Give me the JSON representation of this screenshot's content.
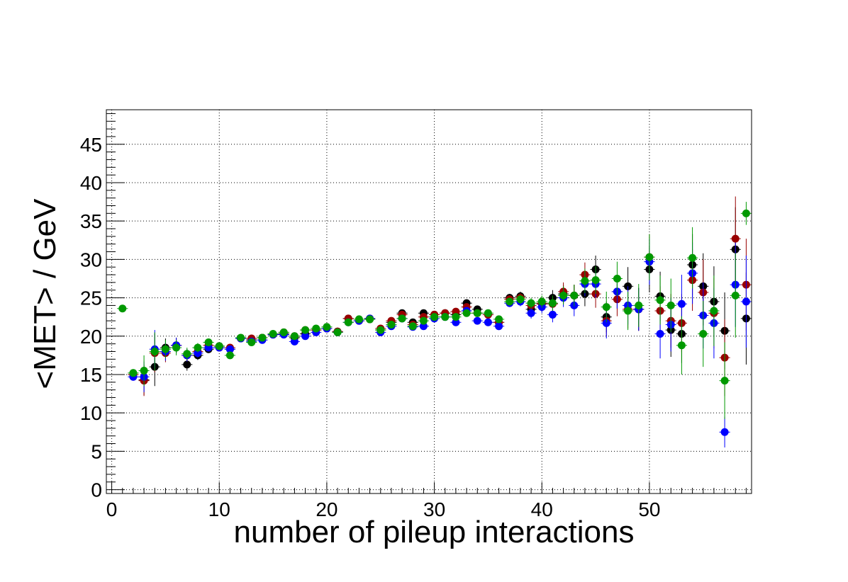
{
  "chart_data": {
    "type": "scatter",
    "title": "",
    "xlabel": "number of pileup interactions",
    "ylabel": "<MET> / GeV",
    "xlim": [
      -0.5,
      59.5
    ],
    "ylim": [
      -0.5,
      49.5
    ],
    "x_ticks": [
      0,
      10,
      20,
      30,
      40,
      50
    ],
    "y_ticks": [
      0,
      5,
      10,
      15,
      20,
      25,
      30,
      35,
      40,
      45
    ],
    "x_tick_labels": [
      "0",
      "10",
      "20",
      "30",
      "40",
      "50"
    ],
    "y_tick_labels": [
      "0",
      "5",
      "10",
      "15",
      "20",
      "25",
      "30",
      "35",
      "40",
      "45"
    ],
    "grid": true,
    "legend": "none",
    "x": [
      1,
      2,
      3,
      4,
      5,
      6,
      7,
      8,
      9,
      10,
      11,
      12,
      13,
      14,
      15,
      16,
      17,
      18,
      19,
      20,
      21,
      22,
      23,
      24,
      25,
      26,
      27,
      28,
      29,
      30,
      31,
      32,
      33,
      34,
      35,
      36,
      37,
      38,
      39,
      40,
      41,
      42,
      43,
      44,
      45,
      46,
      47,
      48,
      49,
      50,
      51,
      52,
      53,
      54,
      55,
      56,
      57,
      58,
      59
    ],
    "series": [
      {
        "color": "#000000",
        "values": [
          null,
          15.0,
          14.3,
          16.0,
          18.5,
          18.8,
          16.3,
          17.5,
          18.3,
          18.7,
          18.3,
          19.7,
          19.5,
          19.8,
          20.2,
          20.3,
          19.8,
          20.3,
          20.8,
          21.0,
          20.6,
          22.3,
          22.0,
          22.2,
          20.8,
          21.8,
          23.0,
          21.8,
          23.0,
          22.8,
          23.0,
          22.8,
          24.3,
          23.5,
          22.8,
          21.8,
          25.0,
          25.2,
          23.5,
          24.2,
          25.0,
          25.5,
          25.3,
          25.5,
          28.7,
          22.5,
          25.8,
          26.5,
          23.5,
          28.7,
          25.2,
          20.8,
          20.3,
          29.3,
          26.5,
          24.5,
          20.7,
          31.3,
          22.3
        ],
        "errors": [
          null,
          0.5,
          2.0,
          2.5,
          1.2,
          1.0,
          0.8,
          0.6,
          0.5,
          0.5,
          0.4,
          0.4,
          0.4,
          0.3,
          0.3,
          0.3,
          0.3,
          0.3,
          0.3,
          0.3,
          0.3,
          0.3,
          0.3,
          0.3,
          0.3,
          0.3,
          0.3,
          0.3,
          0.3,
          0.3,
          0.3,
          0.3,
          0.4,
          0.4,
          0.4,
          0.5,
          0.5,
          0.6,
          0.7,
          0.8,
          1.0,
          1.2,
          1.4,
          1.6,
          1.8,
          2.0,
          2.2,
          2.5,
          2.8,
          3.0,
          3.2,
          3.5,
          3.8,
          4.0,
          4.3,
          4.6,
          5.0,
          5.5,
          6.0
        ]
      },
      {
        "color": "#990000",
        "values": [
          null,
          15.0,
          14.2,
          17.8,
          17.8,
          18.8,
          17.5,
          18.0,
          18.8,
          18.5,
          18.5,
          19.7,
          19.7,
          19.8,
          20.2,
          20.5,
          20.0,
          20.8,
          20.8,
          21.0,
          20.6,
          22.3,
          22.0,
          22.3,
          21.0,
          22.0,
          22.8,
          21.5,
          22.5,
          22.8,
          23.0,
          23.2,
          23.8,
          23.0,
          22.8,
          21.8,
          24.8,
          25.0,
          24.0,
          24.3,
          24.2,
          25.8,
          25.3,
          28.0,
          25.5,
          22.0,
          24.8,
          23.5,
          23.5,
          30.3,
          23.3,
          22.0,
          21.7,
          27.3,
          25.7,
          23.0,
          17.2,
          32.7,
          26.7
        ],
        "errors": [
          null,
          0.5,
          2.0,
          2.5,
          1.2,
          1.0,
          0.8,
          0.6,
          0.5,
          0.5,
          0.4,
          0.4,
          0.4,
          0.3,
          0.3,
          0.3,
          0.3,
          0.3,
          0.3,
          0.3,
          0.3,
          0.3,
          0.3,
          0.3,
          0.3,
          0.3,
          0.3,
          0.3,
          0.3,
          0.3,
          0.3,
          0.3,
          0.4,
          0.4,
          0.4,
          0.5,
          0.5,
          0.6,
          0.7,
          0.8,
          1.0,
          1.2,
          1.4,
          1.6,
          1.8,
          2.0,
          2.2,
          2.5,
          2.8,
          3.0,
          3.2,
          3.5,
          3.8,
          4.0,
          4.3,
          4.6,
          5.0,
          5.5,
          6.0
        ]
      },
      {
        "color": "#0000ff",
        "values": [
          null,
          14.7,
          14.7,
          18.3,
          18.0,
          18.8,
          17.5,
          17.8,
          18.5,
          18.5,
          18.3,
          19.7,
          19.3,
          19.5,
          20.2,
          20.2,
          19.3,
          20.0,
          20.5,
          21.0,
          20.5,
          21.8,
          22.0,
          22.3,
          20.5,
          21.3,
          22.3,
          21.2,
          21.3,
          22.3,
          22.5,
          21.8,
          23.3,
          22.0,
          21.8,
          21.3,
          24.3,
          24.5,
          23.0,
          23.8,
          22.8,
          25.0,
          24.0,
          26.8,
          26.8,
          21.7,
          25.8,
          24.0,
          23.5,
          29.7,
          20.3,
          21.5,
          24.2,
          28.2,
          22.7,
          21.7,
          7.5,
          26.7,
          24.5
        ],
        "errors": [
          null,
          0.5,
          2.0,
          2.5,
          1.2,
          1.0,
          0.8,
          0.6,
          0.5,
          0.5,
          0.4,
          0.4,
          0.4,
          0.3,
          0.3,
          0.3,
          0.3,
          0.3,
          0.3,
          0.3,
          0.3,
          0.3,
          0.3,
          0.3,
          0.3,
          0.3,
          0.3,
          0.3,
          0.3,
          0.3,
          0.3,
          0.3,
          0.4,
          0.4,
          0.4,
          0.5,
          0.5,
          0.6,
          0.7,
          0.8,
          1.0,
          1.2,
          1.4,
          1.6,
          1.8,
          2.0,
          2.2,
          2.5,
          2.8,
          3.0,
          3.2,
          3.5,
          3.8,
          4.0,
          4.3,
          4.6,
          2.0,
          5.5,
          6.0
        ]
      },
      {
        "color": "#009900",
        "values": [
          23.6,
          15.2,
          15.5,
          18.0,
          18.3,
          18.5,
          17.7,
          18.5,
          19.2,
          18.7,
          17.5,
          19.8,
          19.2,
          19.8,
          20.3,
          20.5,
          20.0,
          20.8,
          21.0,
          21.2,
          20.5,
          21.8,
          22.2,
          22.2,
          20.8,
          21.5,
          22.3,
          21.3,
          22.0,
          22.5,
          22.5,
          22.5,
          23.0,
          23.0,
          23.0,
          22.2,
          24.5,
          24.8,
          24.3,
          24.5,
          24.3,
          25.3,
          25.3,
          27.2,
          27.3,
          23.8,
          27.5,
          23.3,
          24.0,
          30.3,
          24.7,
          24.0,
          18.8,
          30.2,
          20.3,
          23.3,
          14.2,
          25.3,
          36.0
        ],
        "errors": [
          0.3,
          0.5,
          2.0,
          2.5,
          1.2,
          1.0,
          0.8,
          0.6,
          0.5,
          0.5,
          0.4,
          0.4,
          0.4,
          0.3,
          0.3,
          0.3,
          0.3,
          0.3,
          0.3,
          0.3,
          0.3,
          0.3,
          0.3,
          0.3,
          0.3,
          0.3,
          0.3,
          0.3,
          0.3,
          0.3,
          0.3,
          0.3,
          0.4,
          0.4,
          0.4,
          0.5,
          0.5,
          0.6,
          0.7,
          0.8,
          1.0,
          1.2,
          1.4,
          1.6,
          1.8,
          2.0,
          2.2,
          2.5,
          2.8,
          3.0,
          3.2,
          3.5,
          3.8,
          4.0,
          4.3,
          4.6,
          5.0,
          5.5,
          1.5
        ]
      }
    ]
  }
}
